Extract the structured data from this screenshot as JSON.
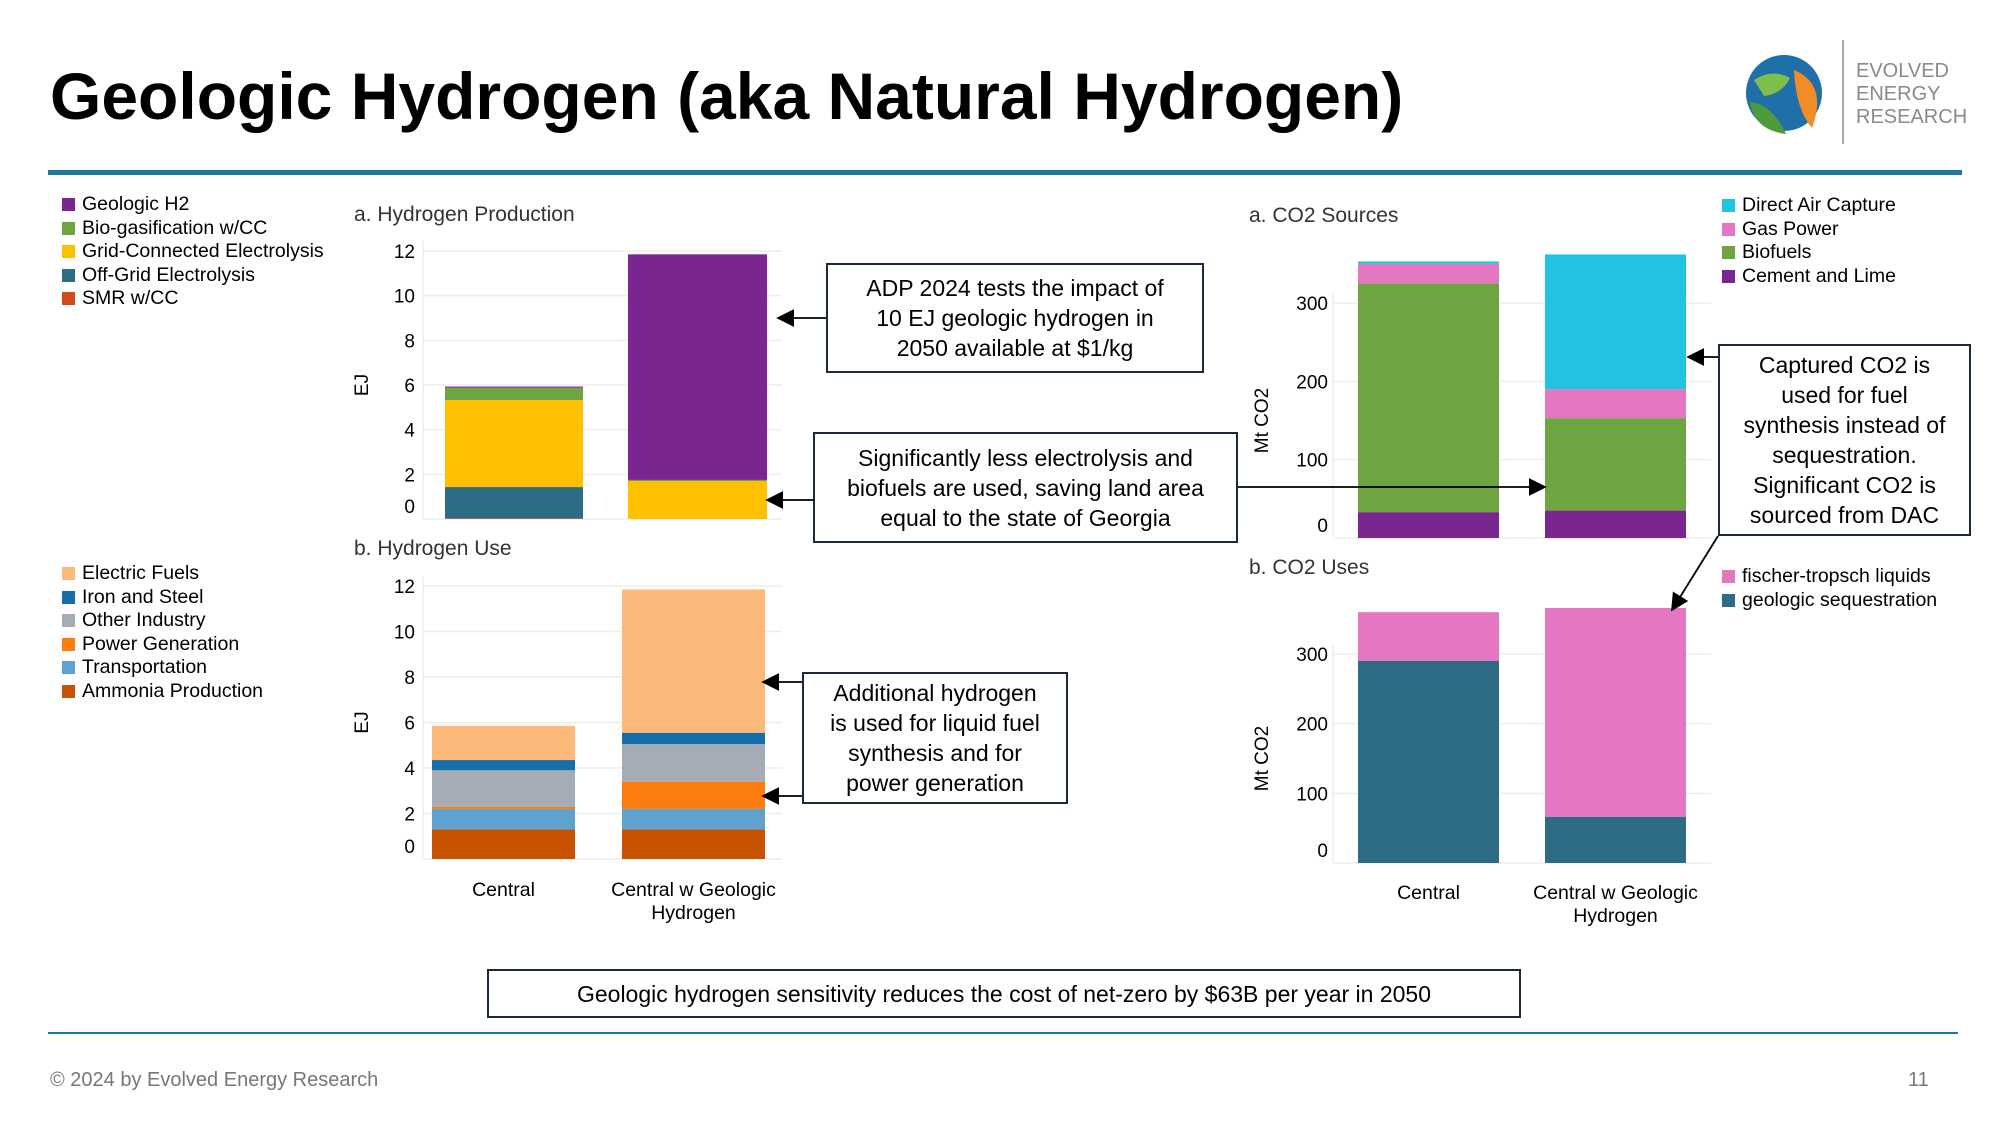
{
  "header": {
    "title": "Geologic Hydrogen (aka Natural Hydrogen)",
    "logo_text": [
      "EVOLVED",
      "ENERGY",
      "RESEARCH"
    ],
    "logo_icon": "globe-leaf-icon"
  },
  "colors": {
    "accent": "#1f7a99"
  },
  "legends": {
    "production": [
      {
        "label": "Geologic H2",
        "color": "#7a2690"
      },
      {
        "label": "Bio-gasification w/CC",
        "color": "#6ea441"
      },
      {
        "label": "Grid-Connected Electrolysis",
        "color": "#ffc000"
      },
      {
        "label": "Off-Grid Electrolysis",
        "color": "#2e6b84"
      },
      {
        "label": "SMR w/CC",
        "color": "#d14b1f"
      }
    ],
    "use": [
      {
        "label": "Electric Fuels",
        "color": "#fdb97a"
      },
      {
        "label": "Iron and Steel",
        "color": "#166fa8"
      },
      {
        "label": "Other Industry",
        "color": "#a5acb6"
      },
      {
        "label": "Power Generation",
        "color": "#fb7d10"
      },
      {
        "label": "Transportation",
        "color": "#5ea3d0"
      },
      {
        "label": "Ammonia Production",
        "color": "#c85200"
      }
    ],
    "co2_sources": [
      {
        "label": "Direct Air Capture",
        "color": "#22c3e0"
      },
      {
        "label": "Gas Power",
        "color": "#e377c2"
      },
      {
        "label": "Biofuels",
        "color": "#6ea441"
      },
      {
        "label": "Cement and Lime",
        "color": "#7a2690"
      }
    ],
    "co2_uses": [
      {
        "label": "fischer-tropsch liquids",
        "color": "#e377c2"
      },
      {
        "label": "geologic sequestration",
        "color": "#2e6b84"
      }
    ]
  },
  "chart_data": [
    {
      "type": "bar",
      "stacked": true,
      "title": "a. Hydrogen Production",
      "ylabel": "EJ",
      "ylim": [
        0,
        12
      ],
      "yticks": [
        0,
        2,
        4,
        6,
        8,
        10,
        12
      ],
      "categories": [
        "Central",
        "Central w Geologic Hydrogen"
      ],
      "grid": true,
      "series": [
        {
          "name": "SMR w/CC",
          "values": [
            0.03,
            0
          ]
        },
        {
          "name": "Off-Grid Electrolysis",
          "values": [
            1.4,
            0
          ]
        },
        {
          "name": "Grid-Connected Electrolysis",
          "values": [
            3.9,
            1.7
          ]
        },
        {
          "name": "Bio-gasification w/CC",
          "values": [
            0.55,
            0.05
          ]
        },
        {
          "name": "Geologic H2",
          "values": [
            0.05,
            10.1
          ]
        }
      ]
    },
    {
      "type": "bar",
      "stacked": true,
      "title": "b. Hydrogen Use",
      "ylabel": "EJ",
      "ylim": [
        0,
        12
      ],
      "yticks": [
        0,
        2,
        4,
        6,
        8,
        10,
        12
      ],
      "categories": [
        "Central",
        "Central w Geologic Hydrogen"
      ],
      "grid": true,
      "series": [
        {
          "name": "Ammonia Production",
          "values": [
            1.3,
            1.3
          ]
        },
        {
          "name": "Transportation",
          "values": [
            0.9,
            0.9
          ]
        },
        {
          "name": "Power Generation",
          "values": [
            0.1,
            1.2
          ]
        },
        {
          "name": "Other Industry",
          "values": [
            1.6,
            1.65
          ]
        },
        {
          "name": "Iron and Steel",
          "values": [
            0.45,
            0.5
          ]
        },
        {
          "name": "Electric Fuels",
          "values": [
            1.5,
            6.3
          ]
        }
      ]
    },
    {
      "type": "bar",
      "stacked": true,
      "title": "a. CO2 Sources",
      "ylabel": "Mt CO2",
      "ylim": [
        0,
        362
      ],
      "yticks": [
        0,
        100,
        200,
        300
      ],
      "categories": [
        "Central",
        "Central w Geologic Hydrogen"
      ],
      "grid": true,
      "series": [
        {
          "name": "Cement and Lime",
          "values": [
            33,
            35
          ]
        },
        {
          "name": "Biofuels",
          "values": [
            292,
            118
          ]
        },
        {
          "name": "Gas Power",
          "values": [
            25,
            37
          ]
        },
        {
          "name": "Direct Air Capture",
          "values": [
            3,
            172
          ]
        }
      ]
    },
    {
      "type": "bar",
      "stacked": true,
      "title": "b. CO2 Uses",
      "ylabel": "Mt CO2",
      "ylim": [
        0,
        366
      ],
      "yticks": [
        0,
        100,
        200,
        300
      ],
      "categories": [
        "Central",
        "Central w Geologic Hydrogen"
      ],
      "grid": true,
      "series": [
        {
          "name": "geologic sequestration",
          "values": [
            290,
            66
          ]
        },
        {
          "name": "fischer-tropsch liquids",
          "values": [
            70,
            300
          ]
        }
      ]
    }
  ],
  "callouts": {
    "c1": [
      "ADP 2024 tests the impact of",
      "10 EJ geologic hydrogen in",
      "2050 available at $1/kg"
    ],
    "c2": [
      "Significantly less electrolysis and",
      "biofuels are used, saving land area",
      "equal to the state of Georgia"
    ],
    "c3": [
      "Additional hydrogen",
      "is used for liquid fuel",
      "synthesis and for",
      "power generation"
    ],
    "c4": [
      "Captured CO2 is",
      "used for fuel",
      "synthesis instead of",
      "sequestration.",
      "Significant CO2 is",
      "sourced from DAC"
    ],
    "bottom": "Geologic hydrogen sensitivity reduces the cost of net-zero by $63B per year in 2050"
  },
  "footer": {
    "copyright": "© 2024 by Evolved Energy Research",
    "page_number": "11"
  }
}
